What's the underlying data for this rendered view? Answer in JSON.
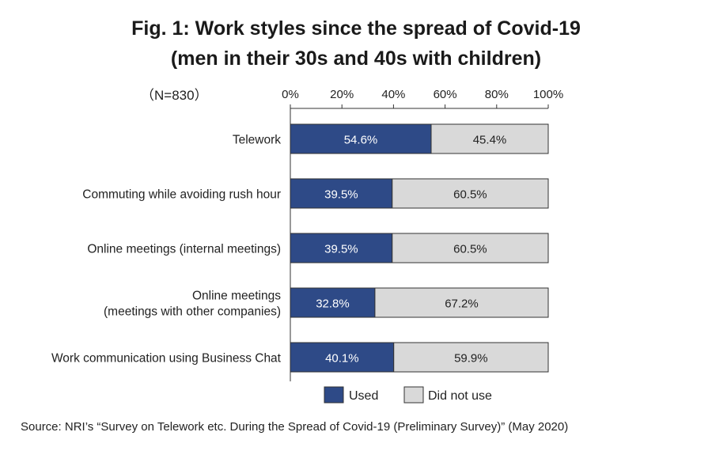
{
  "title_line1": "Fig. 1: Work styles since the spread of Covid-19",
  "title_line2": "(men in their 30s and 40s with children)",
  "sample_label": "（N=830）",
  "source": "Source: NRI’s “Survey on Telework etc. During the Spread of Covid-19 (Preliminary Survey)” (May 2020)",
  "colors": {
    "used": "#2e4a87",
    "not_used": "#d9d9d9",
    "border": "#333333"
  },
  "chart_data": {
    "type": "bar",
    "orientation": "horizontal",
    "stacked": true,
    "categories": [
      [
        "Telework"
      ],
      [
        "Commuting while avoiding rush hour"
      ],
      [
        "Online meetings (internal meetings)"
      ],
      [
        "Online meetings",
        "(meetings with other companies)"
      ],
      [
        "Work communication using Business Chat"
      ]
    ],
    "series": [
      {
        "name": "Used",
        "values": [
          54.6,
          39.5,
          39.5,
          32.8,
          40.1
        ],
        "labels": [
          "54.6%",
          "39.5%",
          "39.5%",
          "32.8%",
          "40.1%"
        ]
      },
      {
        "name": "Did not use",
        "values": [
          45.4,
          60.5,
          60.5,
          67.2,
          59.9
        ],
        "labels": [
          "45.4%",
          "60.5%",
          "60.5%",
          "67.2%",
          "59.9%"
        ]
      }
    ],
    "xlim": [
      0,
      100
    ],
    "xticks": [
      "0%",
      "20%",
      "40%",
      "60%",
      "80%",
      "100%"
    ],
    "legend_position": "bottom"
  }
}
